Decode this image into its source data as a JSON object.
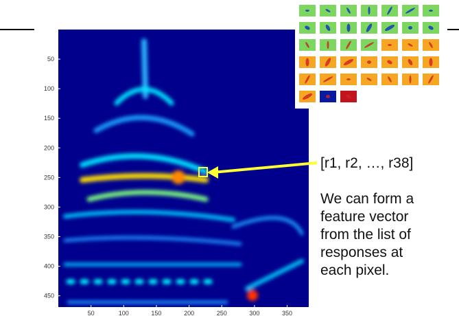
{
  "figure": {
    "xticks": [
      50,
      100,
      150,
      200,
      250,
      300,
      350
    ],
    "yticks": [
      50,
      100,
      150,
      200,
      250,
      300,
      350,
      400,
      450
    ],
    "xlim": [
      0,
      383
    ],
    "ylim": [
      0,
      469
    ]
  },
  "label": "[r1, r2, …, r38]",
  "description": [
    "We can form a",
    "feature vector",
    "from the list of",
    "responses at",
    "each pixel."
  ]
}
